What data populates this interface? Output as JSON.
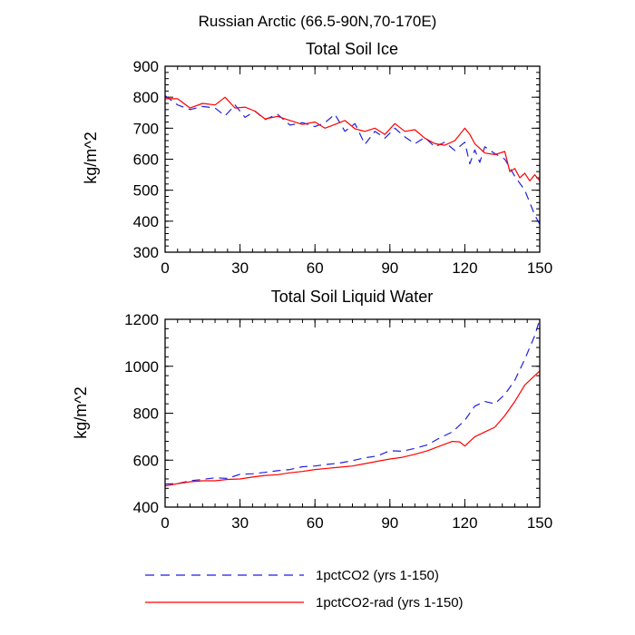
{
  "figure_title": "Russian Arctic (66.5-90N,70-170E)",
  "colors": {
    "series_1": "#1f1fe0",
    "series_2": "#ff0000"
  },
  "legend": [
    {
      "label": "1pctCO2 (yrs 1-150)",
      "style": "dashed",
      "color": "#1f1fe0"
    },
    {
      "label": "1pctCO2-rad (yrs 1-150)",
      "style": "solid",
      "color": "#ff0000"
    }
  ],
  "chart_data": [
    {
      "type": "line",
      "title": "Total Soil Ice",
      "xlabel": "",
      "ylabel": "kg/m^2",
      "xlim": [
        0,
        150
      ],
      "ylim": [
        300,
        900
      ],
      "xticks": [
        0,
        30,
        60,
        90,
        120,
        150
      ],
      "yticks": [
        300,
        400,
        500,
        600,
        700,
        800,
        900
      ],
      "grid": false,
      "series": [
        {
          "name": "1pctCO2 (yrs 1-150)",
          "style": "dashed",
          "points": [
            [
              0,
              805
            ],
            [
              5,
              775
            ],
            [
              10,
              760
            ],
            [
              15,
              770
            ],
            [
              20,
              765
            ],
            [
              24,
              740
            ],
            [
              28,
              775
            ],
            [
              32,
              735
            ],
            [
              36,
              755
            ],
            [
              40,
              728
            ],
            [
              45,
              745
            ],
            [
              50,
              710
            ],
            [
              55,
              718
            ],
            [
              60,
              705
            ],
            [
              64,
              718
            ],
            [
              68,
              745
            ],
            [
              72,
              690
            ],
            [
              76,
              715
            ],
            [
              80,
              648
            ],
            [
              84,
              690
            ],
            [
              88,
              668
            ],
            [
              92,
              700
            ],
            [
              96,
              672
            ],
            [
              100,
              650
            ],
            [
              104,
              670
            ],
            [
              108,
              640
            ],
            [
              112,
              655
            ],
            [
              116,
              628
            ],
            [
              120,
              655
            ],
            [
              122,
              585
            ],
            [
              124,
              630
            ],
            [
              126,
              590
            ],
            [
              128,
              640
            ],
            [
              132,
              618
            ],
            [
              136,
              600
            ],
            [
              140,
              545
            ],
            [
              144,
              500
            ],
            [
              148,
              420
            ],
            [
              150,
              390
            ]
          ]
        },
        {
          "name": "1pctCO2-rad (yrs 1-150)",
          "style": "solid",
          "points": [
            [
              0,
              795
            ],
            [
              5,
              795
            ],
            [
              10,
              765
            ],
            [
              15,
              780
            ],
            [
              20,
              775
            ],
            [
              24,
              800
            ],
            [
              28,
              765
            ],
            [
              32,
              768
            ],
            [
              36,
              755
            ],
            [
              40,
              730
            ],
            [
              45,
              738
            ],
            [
              50,
              725
            ],
            [
              55,
              712
            ],
            [
              60,
              720
            ],
            [
              64,
              700
            ],
            [
              68,
              712
            ],
            [
              72,
              725
            ],
            [
              76,
              698
            ],
            [
              80,
              690
            ],
            [
              84,
              700
            ],
            [
              88,
              680
            ],
            [
              92,
              715
            ],
            [
              96,
              690
            ],
            [
              100,
              695
            ],
            [
              104,
              668
            ],
            [
              108,
              650
            ],
            [
              112,
              645
            ],
            [
              116,
              660
            ],
            [
              120,
              700
            ],
            [
              122,
              680
            ],
            [
              124,
              650
            ],
            [
              128,
              620
            ],
            [
              132,
              615
            ],
            [
              136,
              625
            ],
            [
              138,
              560
            ],
            [
              140,
              570
            ],
            [
              142,
              540
            ],
            [
              144,
              555
            ],
            [
              146,
              530
            ],
            [
              148,
              550
            ],
            [
              150,
              530
            ]
          ]
        }
      ]
    },
    {
      "type": "line",
      "title": "Total Soil Liquid Water",
      "xlabel": "",
      "ylabel": "kg/m^2",
      "xlim": [
        0,
        150
      ],
      "ylim": [
        400,
        1200
      ],
      "xticks": [
        0,
        30,
        60,
        90,
        120,
        150
      ],
      "yticks": [
        400,
        600,
        800,
        1000,
        1200
      ],
      "grid": false,
      "series": [
        {
          "name": "1pctCO2 (yrs 1-150)",
          "style": "dashed",
          "points": [
            [
              0,
              498
            ],
            [
              5,
              500
            ],
            [
              10,
              512
            ],
            [
              15,
              518
            ],
            [
              20,
              525
            ],
            [
              25,
              522
            ],
            [
              30,
              540
            ],
            [
              35,
              542
            ],
            [
              40,
              548
            ],
            [
              45,
              555
            ],
            [
              50,
              560
            ],
            [
              55,
              572
            ],
            [
              60,
              575
            ],
            [
              65,
              582
            ],
            [
              70,
              588
            ],
            [
              75,
              598
            ],
            [
              80,
              610
            ],
            [
              85,
              618
            ],
            [
              90,
              640
            ],
            [
              95,
              638
            ],
            [
              100,
              650
            ],
            [
              105,
              665
            ],
            [
              110,
              695
            ],
            [
              115,
              720
            ],
            [
              120,
              770
            ],
            [
              124,
              830
            ],
            [
              128,
              850
            ],
            [
              132,
              840
            ],
            [
              136,
              880
            ],
            [
              140,
              940
            ],
            [
              144,
              1030
            ],
            [
              148,
              1130
            ],
            [
              150,
              1200
            ]
          ]
        },
        {
          "name": "1pctCO2-rad (yrs 1-150)",
          "style": "solid",
          "points": [
            [
              0,
              490
            ],
            [
              5,
              500
            ],
            [
              10,
              508
            ],
            [
              15,
              512
            ],
            [
              20,
              512
            ],
            [
              25,
              518
            ],
            [
              30,
              520
            ],
            [
              35,
              528
            ],
            [
              40,
              535
            ],
            [
              45,
              538
            ],
            [
              50,
              546
            ],
            [
              55,
              552
            ],
            [
              60,
              560
            ],
            [
              65,
              565
            ],
            [
              70,
              570
            ],
            [
              75,
              575
            ],
            [
              80,
              585
            ],
            [
              85,
              595
            ],
            [
              90,
              605
            ],
            [
              95,
              612
            ],
            [
              100,
              625
            ],
            [
              105,
              640
            ],
            [
              110,
              660
            ],
            [
              115,
              680
            ],
            [
              118,
              678
            ],
            [
              120,
              660
            ],
            [
              124,
              700
            ],
            [
              128,
              720
            ],
            [
              132,
              740
            ],
            [
              136,
              790
            ],
            [
              140,
              850
            ],
            [
              144,
              920
            ],
            [
              148,
              960
            ],
            [
              150,
              980
            ]
          ]
        }
      ]
    }
  ]
}
